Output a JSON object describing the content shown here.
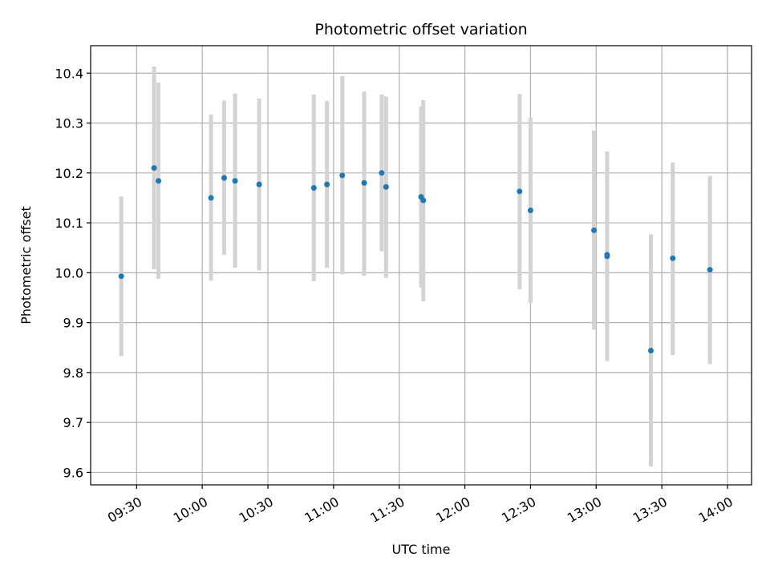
{
  "chart_data": {
    "type": "scatter",
    "title": "Photometric offset variation",
    "xlabel": "UTC time",
    "ylabel": "Photometric offset",
    "x_unit": "UTC time (HH:MM)",
    "xlim": [
      "09:09",
      "14:11"
    ],
    "ylim": [
      9.575,
      10.455
    ],
    "x_ticks": [
      "09:30",
      "10:00",
      "10:30",
      "11:00",
      "11:30",
      "12:00",
      "12:30",
      "13:00",
      "13:30",
      "14:00"
    ],
    "y_ticks": [
      "9.6",
      "9.7",
      "9.8",
      "9.9",
      "10.0",
      "10.1",
      "10.2",
      "10.3",
      "10.4"
    ],
    "grid": true,
    "marker_color": "#1f77b4",
    "errorbar_color": "#d3d3d3",
    "series": [
      {
        "points": [
          {
            "x": "09:23",
            "y": 9.993,
            "ylow": 9.833,
            "yhigh": 10.153
          },
          {
            "x": "09:38",
            "y": 10.21,
            "ylow": 10.007,
            "yhigh": 10.413
          },
          {
            "x": "09:40",
            "y": 10.184,
            "ylow": 9.988,
            "yhigh": 10.381
          },
          {
            "x": "10:04",
            "y": 10.15,
            "ylow": 9.984,
            "yhigh": 10.317
          },
          {
            "x": "10:10",
            "y": 10.19,
            "ylow": 10.036,
            "yhigh": 10.345
          },
          {
            "x": "10:15",
            "y": 10.184,
            "ylow": 10.01,
            "yhigh": 10.359
          },
          {
            "x": "10:26",
            "y": 10.177,
            "ylow": 10.005,
            "yhigh": 10.349
          },
          {
            "x": "10:51",
            "y": 10.17,
            "ylow": 9.983,
            "yhigh": 10.357
          },
          {
            "x": "10:57",
            "y": 10.177,
            "ylow": 10.01,
            "yhigh": 10.344
          },
          {
            "x": "11:04",
            "y": 10.195,
            "ylow": 9.997,
            "yhigh": 10.394
          },
          {
            "x": "11:14",
            "y": 10.18,
            "ylow": 9.994,
            "yhigh": 10.363
          },
          {
            "x": "11:22",
            "y": 10.2,
            "ylow": 10.043,
            "yhigh": 10.357
          },
          {
            "x": "11:24",
            "y": 10.172,
            "ylow": 9.99,
            "yhigh": 10.353
          },
          {
            "x": "11:40",
            "y": 10.152,
            "ylow": 9.97,
            "yhigh": 10.333
          },
          {
            "x": "11:41",
            "y": 10.145,
            "ylow": 9.943,
            "yhigh": 10.346
          },
          {
            "x": "12:25",
            "y": 10.163,
            "ylow": 9.967,
            "yhigh": 10.358
          },
          {
            "x": "12:30",
            "y": 10.125,
            "ylow": 9.94,
            "yhigh": 10.311
          },
          {
            "x": "12:59",
            "y": 10.085,
            "ylow": 9.886,
            "yhigh": 10.285
          },
          {
            "x": "13:05",
            "y": 10.033,
            "ylow": 9.823,
            "yhigh": 10.243
          },
          {
            "x": "13:05",
            "y": 10.036,
            "ylow": 9.846,
            "yhigh": 10.227
          },
          {
            "x": "13:25",
            "y": 9.844,
            "ylow": 9.612,
            "yhigh": 10.077
          },
          {
            "x": "13:35",
            "y": 10.029,
            "ylow": 9.835,
            "yhigh": 10.221
          },
          {
            "x": "13:52",
            "y": 10.006,
            "ylow": 9.817,
            "yhigh": 10.194
          }
        ]
      }
    ]
  }
}
